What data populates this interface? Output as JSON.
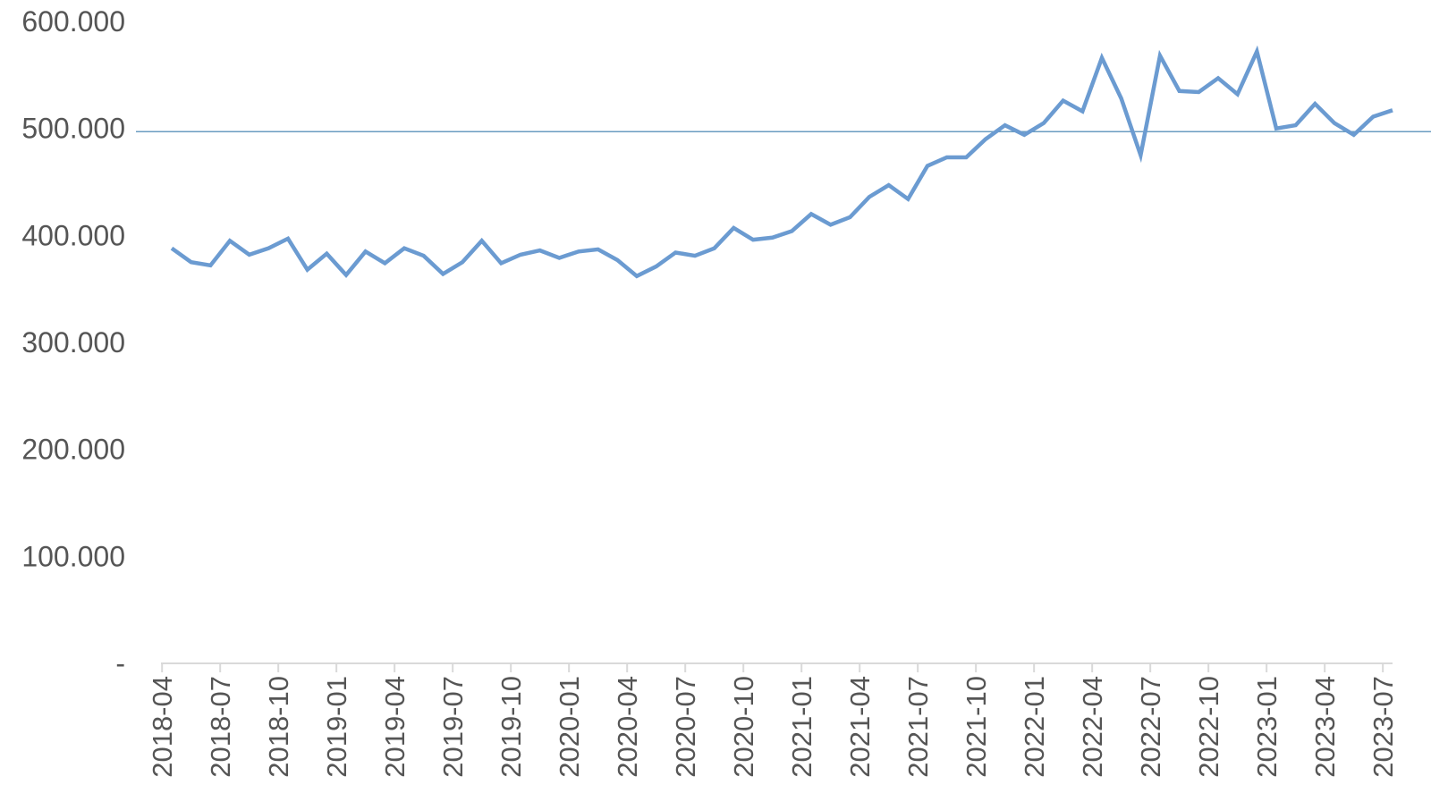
{
  "chart_data": {
    "type": "line",
    "title": "",
    "xlabel": "",
    "ylabel": "",
    "ylim": [
      0,
      600000
    ],
    "y_ticks": [
      {
        "value": 600000,
        "label": "600.000"
      },
      {
        "value": 500000,
        "label": "500.000"
      },
      {
        "value": 400000,
        "label": "400.000"
      },
      {
        "value": 300000,
        "label": "300.000"
      },
      {
        "value": 200000,
        "label": "200.000"
      },
      {
        "value": 100000,
        "label": "100.000"
      },
      {
        "value": 0,
        "label": "-"
      }
    ],
    "x_tick_labels": [
      "2018-04",
      "2018-07",
      "2018-10",
      "2019-01",
      "2019-04",
      "2019-07",
      "2019-10",
      "2020-01",
      "2020-04",
      "2020-07",
      "2020-10",
      "2021-01",
      "2021-04",
      "2021-07",
      "2021-10",
      "2022-01",
      "2022-04",
      "2022-07",
      "2022-10",
      "2023-01",
      "2023-04",
      "2023-07"
    ],
    "grid": false,
    "legend": "none",
    "reference_line": {
      "value": 497000,
      "color": "#6a9cc0"
    },
    "series": [
      {
        "color": "#6b9bd1",
        "x": [
          "2018-04",
          "2018-05",
          "2018-06",
          "2018-07",
          "2018-08",
          "2018-09",
          "2018-10",
          "2018-11",
          "2018-12",
          "2019-01",
          "2019-02",
          "2019-03",
          "2019-04",
          "2019-05",
          "2019-06",
          "2019-07",
          "2019-08",
          "2019-09",
          "2019-10",
          "2019-11",
          "2019-12",
          "2020-01",
          "2020-02",
          "2020-03",
          "2020-04",
          "2020-05",
          "2020-06",
          "2020-07",
          "2020-08",
          "2020-09",
          "2020-10",
          "2020-11",
          "2020-12",
          "2021-01",
          "2021-02",
          "2021-03",
          "2021-04",
          "2021-05",
          "2021-06",
          "2021-07",
          "2021-08",
          "2021-09",
          "2021-10",
          "2021-11",
          "2021-12",
          "2022-01",
          "2022-02",
          "2022-03",
          "2022-04",
          "2022-05",
          "2022-06",
          "2022-07",
          "2022-08",
          "2022-09",
          "2022-10",
          "2022-11",
          "2022-12",
          "2023-01",
          "2023-02",
          "2023-03",
          "2023-04",
          "2023-05",
          "2023-06",
          "2023-07"
        ],
        "values": [
          388000,
          375000,
          372000,
          395000,
          382000,
          388000,
          397000,
          368000,
          383000,
          363000,
          385000,
          374000,
          388000,
          381000,
          364000,
          375000,
          395000,
          374000,
          382000,
          386000,
          379000,
          385000,
          387000,
          377000,
          362000,
          371000,
          384000,
          381000,
          388000,
          407000,
          396000,
          398000,
          404000,
          420000,
          410000,
          417000,
          436000,
          447000,
          434000,
          465000,
          473000,
          473000,
          490000,
          503000,
          494000,
          505000,
          526000,
          516000,
          566000,
          528000,
          475000,
          568000,
          535000,
          534000,
          547000,
          532000,
          572000,
          500000,
          503000,
          523000,
          505000,
          494000,
          511000,
          517000
        ]
      }
    ]
  }
}
